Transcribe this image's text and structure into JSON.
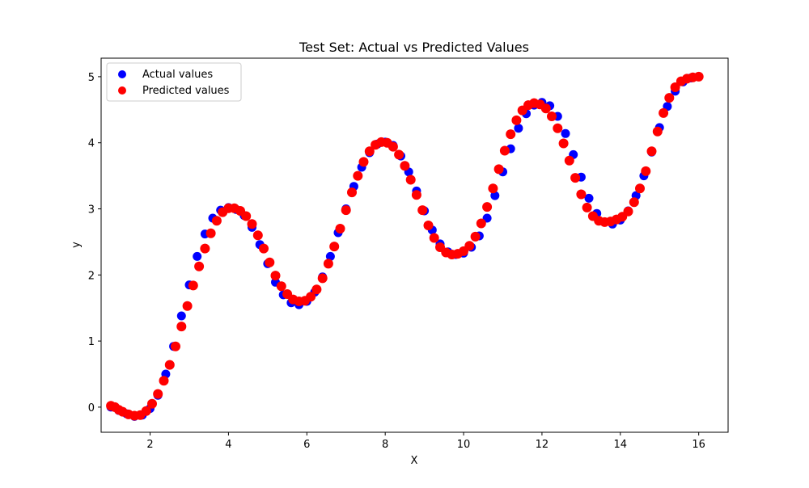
{
  "chart_data": {
    "type": "scatter",
    "title": "Test Set: Actual vs Predicted Values",
    "xlabel": "X",
    "ylabel": "y",
    "xlim": [
      0.75,
      16.75
    ],
    "ylim": [
      -0.38,
      5.28
    ],
    "x_ticks": [
      2,
      4,
      6,
      8,
      10,
      12,
      14,
      16
    ],
    "y_ticks": [
      0,
      1,
      2,
      3,
      4,
      5
    ],
    "grid": false,
    "legend_position": "upper-left",
    "series": [
      {
        "name": "Actual values",
        "color": "#0000ff",
        "x": [
          1.0,
          1.2,
          1.4,
          1.6,
          1.8,
          2.0,
          2.2,
          2.4,
          2.6,
          2.8,
          3.0,
          3.2,
          3.4,
          3.6,
          3.8,
          4.0,
          4.2,
          4.4,
          4.6,
          4.8,
          5.0,
          5.2,
          5.4,
          5.6,
          5.8,
          6.0,
          6.2,
          6.4,
          6.6,
          6.8,
          7.0,
          7.2,
          7.4,
          7.6,
          7.8,
          8.0,
          8.2,
          8.4,
          8.6,
          8.8,
          9.0,
          9.2,
          9.4,
          9.6,
          9.8,
          10.0,
          10.2,
          10.4,
          10.6,
          10.8,
          11.0,
          11.2,
          11.4,
          11.6,
          11.8,
          12.0,
          12.2,
          12.4,
          12.6,
          12.8,
          13.0,
          13.2,
          13.4,
          13.6,
          13.8,
          14.0,
          14.2,
          14.4,
          14.6,
          14.8,
          15.0,
          15.2,
          15.4,
          15.6,
          15.8,
          16.0
        ],
        "y": [
          0.0,
          -0.05,
          -0.1,
          -0.14,
          -0.12,
          -0.02,
          0.18,
          0.5,
          0.92,
          1.38,
          1.85,
          2.28,
          2.62,
          2.86,
          2.98,
          3.02,
          2.99,
          2.9,
          2.72,
          2.46,
          2.17,
          1.89,
          1.7,
          1.58,
          1.55,
          1.6,
          1.74,
          1.97,
          2.28,
          2.64,
          3.0,
          3.34,
          3.63,
          3.85,
          3.98,
          4.01,
          3.96,
          3.8,
          3.56,
          3.27,
          2.97,
          2.68,
          2.47,
          2.35,
          2.31,
          2.33,
          2.42,
          2.59,
          2.86,
          3.2,
          3.56,
          3.91,
          4.22,
          4.44,
          4.57,
          4.61,
          4.56,
          4.4,
          4.14,
          3.82,
          3.48,
          3.16,
          2.93,
          2.8,
          2.77,
          2.83,
          2.97,
          3.2,
          3.5,
          3.86,
          4.23,
          4.55,
          4.78,
          4.92,
          4.98,
          5.0
        ]
      },
      {
        "name": "Predicted values",
        "color": "#ff0000",
        "x": [
          1.0,
          1.1,
          1.2,
          1.3,
          1.45,
          1.6,
          1.75,
          1.9,
          2.05,
          2.2,
          2.35,
          2.5,
          2.65,
          2.8,
          2.95,
          3.1,
          3.25,
          3.4,
          3.55,
          3.7,
          3.85,
          4.0,
          4.15,
          4.3,
          4.45,
          4.6,
          4.75,
          4.9,
          5.05,
          5.2,
          5.35,
          5.5,
          5.65,
          5.8,
          5.95,
          6.1,
          6.25,
          6.4,
          6.55,
          6.7,
          6.85,
          7.0,
          7.15,
          7.3,
          7.45,
          7.6,
          7.75,
          7.9,
          8.05,
          8.2,
          8.35,
          8.5,
          8.65,
          8.8,
          8.95,
          9.1,
          9.25,
          9.4,
          9.55,
          9.7,
          9.85,
          10.0,
          10.15,
          10.3,
          10.45,
          10.6,
          10.75,
          10.9,
          11.05,
          11.2,
          11.35,
          11.5,
          11.65,
          11.8,
          11.95,
          12.1,
          12.25,
          12.4,
          12.55,
          12.7,
          12.85,
          13.0,
          13.15,
          13.3,
          13.45,
          13.6,
          13.75,
          13.9,
          14.05,
          14.2,
          14.35,
          14.5,
          14.65,
          14.8,
          14.95,
          15.1,
          15.25,
          15.4,
          15.55,
          15.7,
          15.85,
          16.0
        ],
        "y": [
          0.02,
          0.0,
          -0.04,
          -0.07,
          -0.11,
          -0.13,
          -0.12,
          -0.06,
          0.05,
          0.2,
          0.4,
          0.64,
          0.92,
          1.22,
          1.53,
          1.84,
          2.13,
          2.4,
          2.63,
          2.82,
          2.95,
          3.01,
          3.01,
          2.97,
          2.89,
          2.77,
          2.6,
          2.4,
          2.19,
          1.99,
          1.83,
          1.71,
          1.63,
          1.6,
          1.61,
          1.67,
          1.78,
          1.95,
          2.17,
          2.43,
          2.7,
          2.98,
          3.25,
          3.5,
          3.71,
          3.87,
          3.97,
          4.01,
          4.0,
          3.94,
          3.82,
          3.65,
          3.44,
          3.21,
          2.98,
          2.75,
          2.56,
          2.42,
          2.34,
          2.31,
          2.32,
          2.36,
          2.44,
          2.58,
          2.78,
          3.03,
          3.31,
          3.6,
          3.88,
          4.13,
          4.34,
          4.49,
          4.57,
          4.6,
          4.58,
          4.52,
          4.4,
          4.22,
          3.99,
          3.73,
          3.47,
          3.22,
          3.02,
          2.89,
          2.82,
          2.8,
          2.81,
          2.84,
          2.88,
          2.96,
          3.1,
          3.31,
          3.57,
          3.87,
          4.17,
          4.45,
          4.68,
          4.84,
          4.93,
          4.97,
          4.99,
          5.0
        ]
      }
    ]
  }
}
